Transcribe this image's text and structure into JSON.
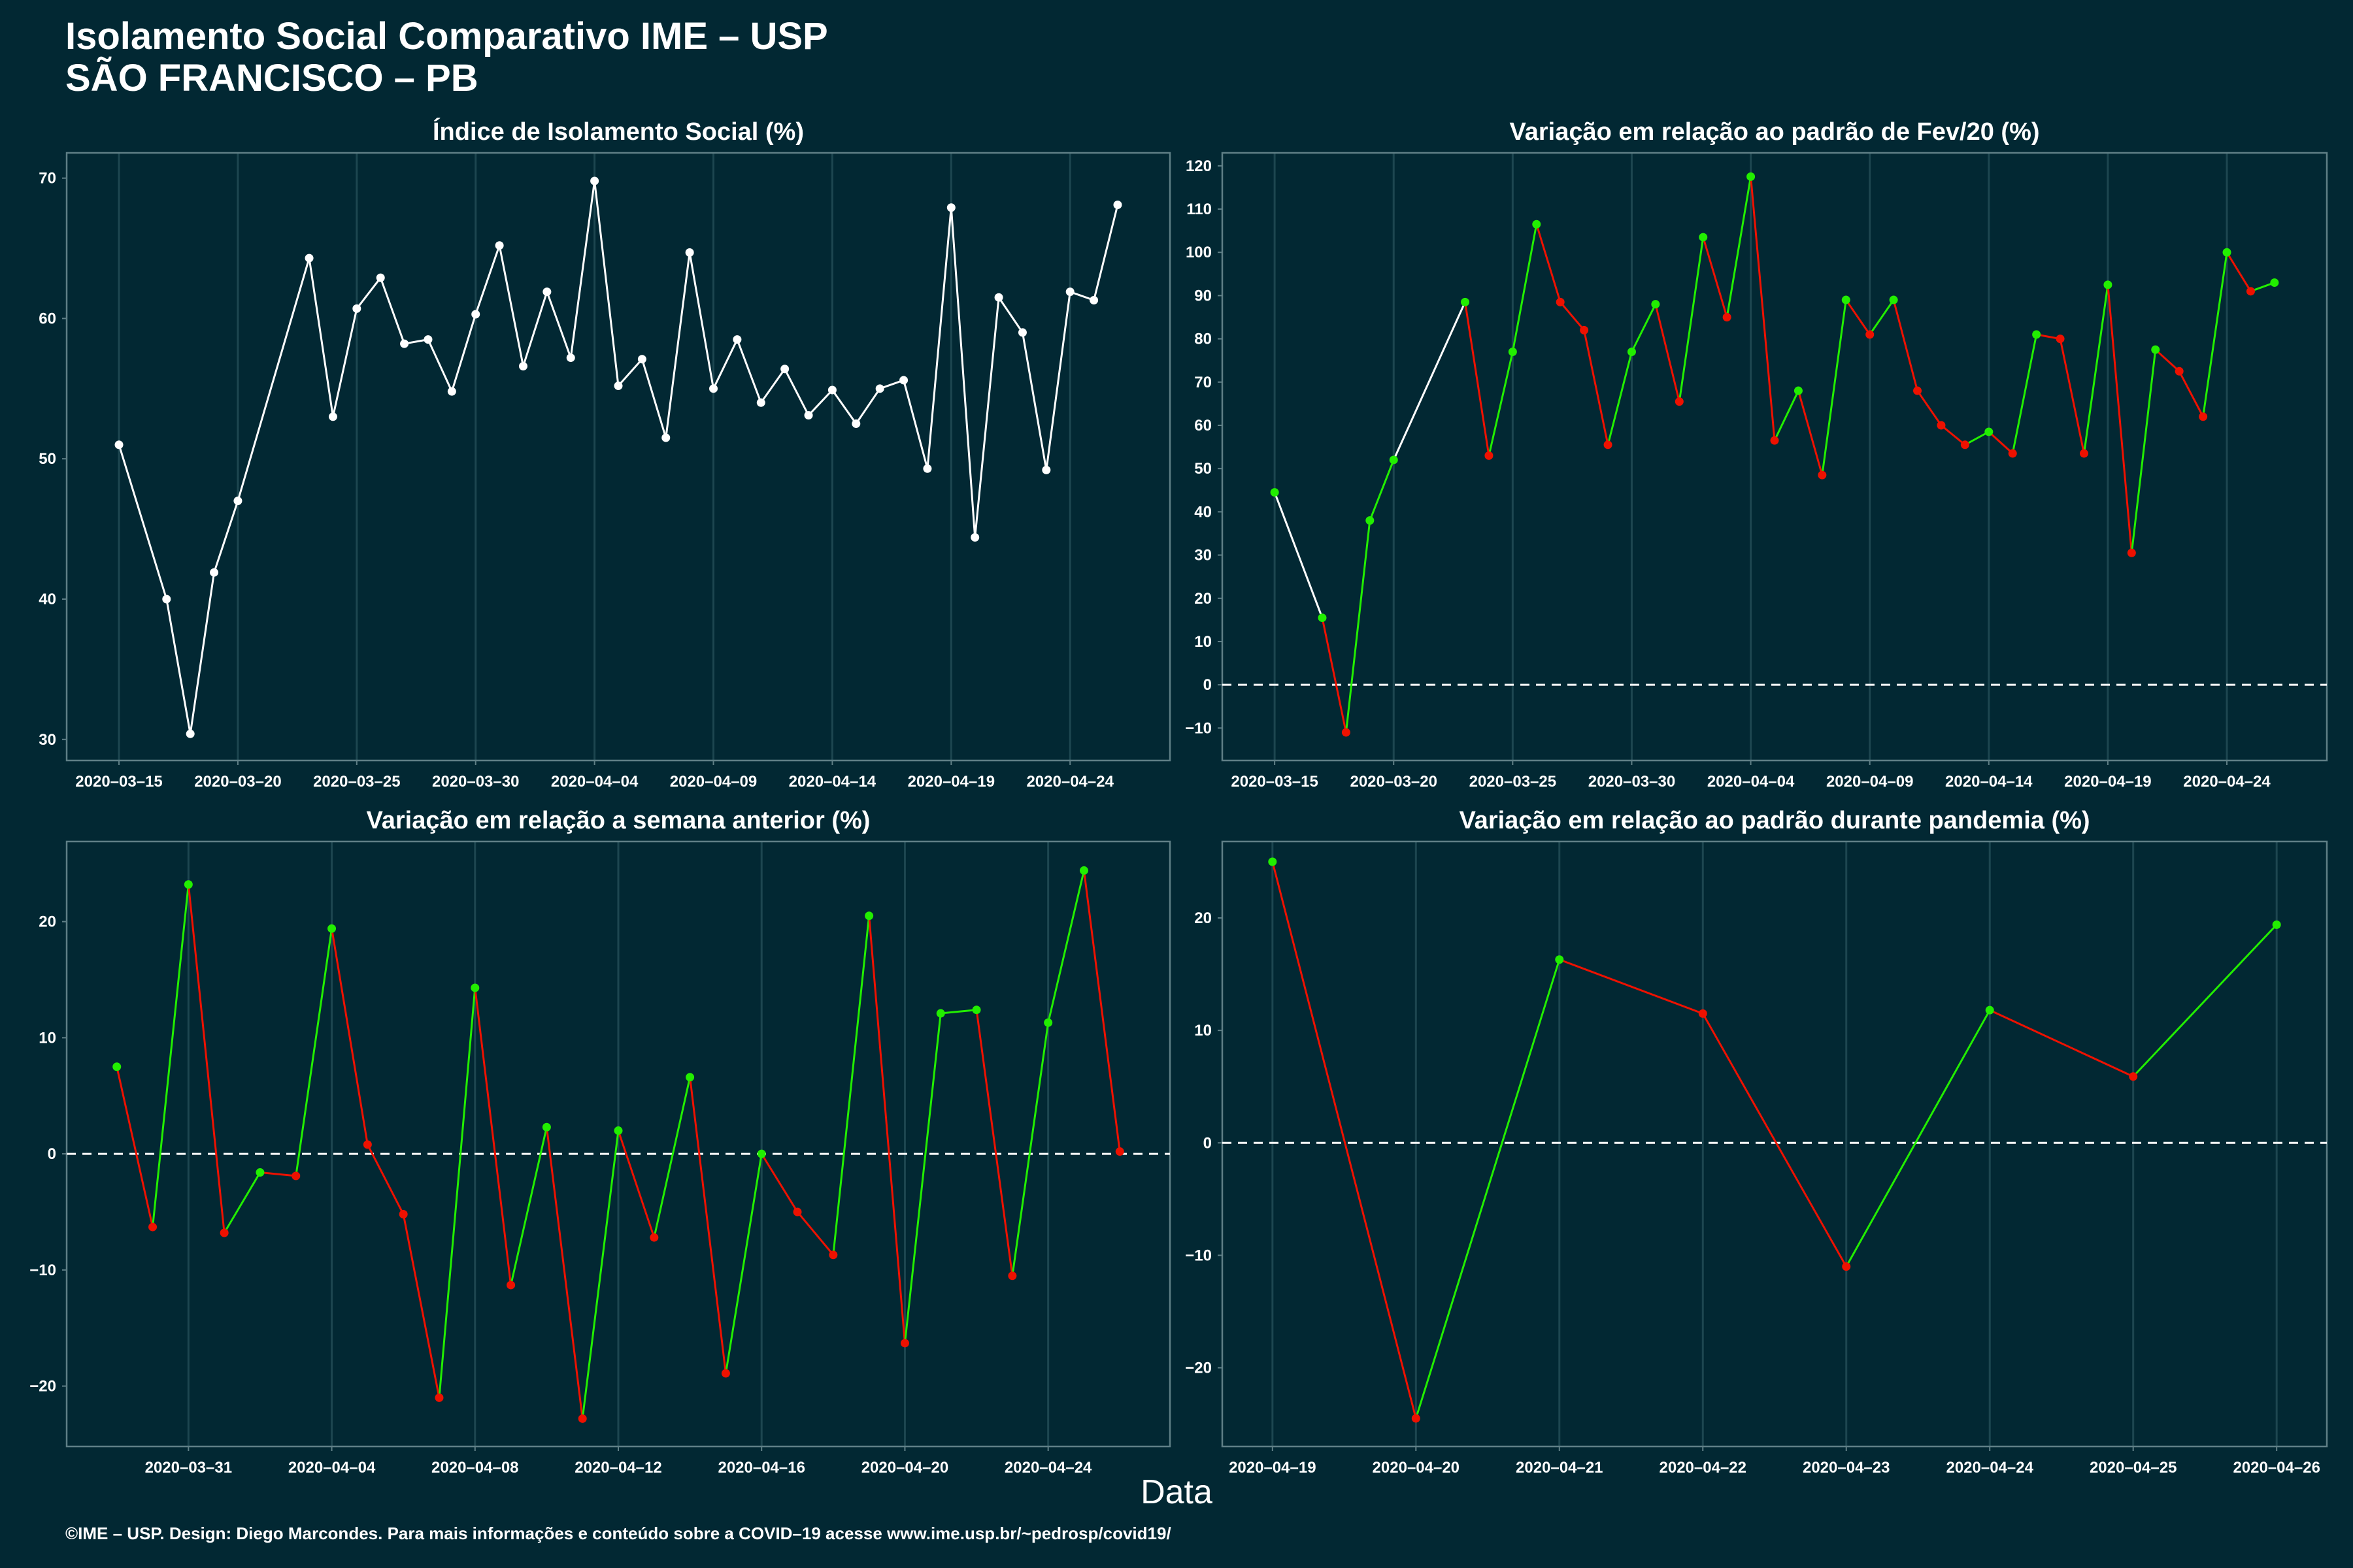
{
  "header": {
    "title_line1": "Isolamento Social Comparativo IME – USP",
    "title_line2": "SÃO FRANCISCO – PB"
  },
  "x_axis_title": "Data",
  "footer": "©IME – USP. Design: Diego Marcondes. Para mais informações e conteúdo sobre a COVID–19 acesse www.ime.usp.br/~pedrosp/covid19/",
  "colors": {
    "background": "#022833",
    "panel_border": "#5f7f86",
    "grid": "#1d4650",
    "white_line": "#ffffff",
    "up": "#22ee00",
    "down": "#ee1100",
    "zero_line": "#ffffff"
  },
  "chart_data": [
    {
      "type": "line",
      "title": "Índice de Isolamento Social (%)",
      "ylim": [
        28.5,
        71.8
      ],
      "yticks": [
        30,
        40,
        50,
        60,
        70
      ],
      "xlim": [
        -2.2,
        44.2
      ],
      "xticks": [
        {
          "x": 0,
          "label": "2020–03–15"
        },
        {
          "x": 5,
          "label": "2020–03–20"
        },
        {
          "x": 10,
          "label": "2020–03–25"
        },
        {
          "x": 15,
          "label": "2020–03–30"
        },
        {
          "x": 20,
          "label": "2020–04–04"
        },
        {
          "x": 25,
          "label": "2020–04–09"
        },
        {
          "x": 30,
          "label": "2020–04–14"
        },
        {
          "x": 35,
          "label": "2020–04–19"
        },
        {
          "x": 40,
          "label": "2020–04–24"
        }
      ],
      "coloring": "white",
      "zero_line": false,
      "points": [
        [
          0,
          51.0
        ],
        [
          2,
          40.0
        ],
        [
          3,
          30.4
        ],
        [
          4,
          41.9
        ],
        [
          5,
          47.0
        ],
        [
          8,
          64.3
        ],
        [
          9,
          53.0
        ],
        [
          10,
          60.7
        ],
        [
          11,
          62.9
        ],
        [
          12,
          58.2
        ],
        [
          13,
          58.5
        ],
        [
          14,
          54.8
        ],
        [
          15,
          60.3
        ],
        [
          16,
          65.2
        ],
        [
          17,
          56.6
        ],
        [
          18,
          61.9
        ],
        [
          19,
          57.2
        ],
        [
          20,
          69.8
        ],
        [
          21,
          55.2
        ],
        [
          22,
          57.1
        ],
        [
          23,
          51.5
        ],
        [
          24,
          64.7
        ],
        [
          25,
          55.0
        ],
        [
          26,
          58.5
        ],
        [
          27,
          54.0
        ],
        [
          28,
          56.4
        ],
        [
          29,
          53.1
        ],
        [
          30,
          54.9
        ],
        [
          31,
          52.5
        ],
        [
          32,
          55.0
        ],
        [
          33,
          55.6
        ],
        [
          34,
          49.3
        ],
        [
          35,
          67.9
        ],
        [
          36,
          44.4
        ],
        [
          37,
          61.5
        ],
        [
          38,
          59.0
        ],
        [
          39,
          49.2
        ],
        [
          40,
          61.9
        ],
        [
          41,
          61.3
        ],
        [
          42,
          68.1
        ]
      ]
    },
    {
      "type": "line",
      "title": "Variação em relação ao padrão de Fev/20 (%)",
      "ylim": [
        -17.5,
        123
      ],
      "yticks": [
        -10,
        0,
        10,
        20,
        30,
        40,
        50,
        60,
        70,
        80,
        90,
        100,
        110,
        120
      ],
      "xlim": [
        -2.2,
        44.2
      ],
      "xticks": [
        {
          "x": 0,
          "label": "2020–03–15"
        },
        {
          "x": 5,
          "label": "2020–03–20"
        },
        {
          "x": 10,
          "label": "2020–03–25"
        },
        {
          "x": 15,
          "label": "2020–03–30"
        },
        {
          "x": 20,
          "label": "2020–04–04"
        },
        {
          "x": 25,
          "label": "2020–04–09"
        },
        {
          "x": 30,
          "label": "2020–04–14"
        },
        {
          "x": 35,
          "label": "2020–04–19"
        },
        {
          "x": 40,
          "label": "2020–04–24"
        }
      ],
      "coloring": "updown",
      "zero_line": true,
      "points": [
        [
          0,
          44.5
        ],
        [
          2,
          15.5
        ],
        [
          3,
          -11.0
        ],
        [
          4,
          38.0
        ],
        [
          5,
          52.0
        ],
        [
          8,
          88.5
        ],
        [
          9,
          53.0
        ],
        [
          10,
          77.0
        ],
        [
          11,
          106.5
        ],
        [
          12,
          88.5
        ],
        [
          13,
          82.0
        ],
        [
          14,
          55.5
        ],
        [
          15,
          77.0
        ],
        [
          16,
          88.0
        ],
        [
          17,
          65.5
        ],
        [
          18,
          103.5
        ],
        [
          19,
          85.0
        ],
        [
          20,
          117.5
        ],
        [
          21,
          56.5
        ],
        [
          22,
          68.0
        ],
        [
          23,
          48.5
        ],
        [
          24,
          89.0
        ],
        [
          25,
          81.0
        ],
        [
          26,
          89.0
        ],
        [
          27,
          68.0
        ],
        [
          28,
          60.0
        ],
        [
          29,
          55.5
        ],
        [
          30,
          58.5
        ],
        [
          31,
          53.5
        ],
        [
          32,
          81.0
        ],
        [
          33,
          80.0
        ],
        [
          34,
          53.5
        ],
        [
          35,
          92.5
        ],
        [
          36,
          30.5
        ],
        [
          37,
          77.5
        ],
        [
          38,
          72.5
        ],
        [
          39,
          62.0
        ],
        [
          40,
          100.0
        ],
        [
          41,
          91.0
        ],
        [
          42,
          93.0
        ]
      ]
    },
    {
      "type": "line",
      "title": "Variação em relação a semana anterior (%)",
      "ylim": [
        -25.2,
        26.9
      ],
      "yticks": [
        -20,
        -10,
        0,
        10,
        20
      ],
      "xlim": [
        -1.4,
        29.4
      ],
      "xticks": [
        {
          "x": 2,
          "label": "2020–03–31"
        },
        {
          "x": 6,
          "label": "2020–04–04"
        },
        {
          "x": 10,
          "label": "2020–04–08"
        },
        {
          "x": 14,
          "label": "2020–04–12"
        },
        {
          "x": 18,
          "label": "2020–04–16"
        },
        {
          "x": 22,
          "label": "2020–04–20"
        },
        {
          "x": 26,
          "label": "2020–04–24"
        }
      ],
      "coloring": "updown",
      "zero_line": true,
      "points": [
        [
          0,
          7.5
        ],
        [
          1,
          -6.3
        ],
        [
          2,
          23.2
        ],
        [
          3,
          -6.8
        ],
        [
          4,
          -1.6
        ],
        [
          5,
          -1.9
        ],
        [
          6,
          19.4
        ],
        [
          7,
          0.8
        ],
        [
          8,
          -5.2
        ],
        [
          9,
          -21.0
        ],
        [
          10,
          14.3
        ],
        [
          11,
          -11.3
        ],
        [
          12,
          2.3
        ],
        [
          13,
          -22.8
        ],
        [
          14,
          2.0
        ],
        [
          15,
          -7.2
        ],
        [
          16,
          6.6
        ],
        [
          17,
          -18.9
        ],
        [
          18,
          0.0
        ],
        [
          19,
          -5.0
        ],
        [
          20,
          -8.7
        ],
        [
          21,
          20.5
        ],
        [
          22,
          -16.3
        ],
        [
          23,
          12.1
        ],
        [
          24,
          12.4
        ],
        [
          25,
          -10.5
        ],
        [
          26,
          11.3
        ],
        [
          27,
          24.4
        ],
        [
          28,
          0.2
        ]
      ]
    },
    {
      "type": "line",
      "title": "Variação em relação ao padrão durante pandemia (%)",
      "ylim": [
        -27,
        26.8
      ],
      "yticks": [
        -20,
        -10,
        0,
        10,
        20
      ],
      "xlim": [
        -0.35,
        7.35
      ],
      "xticks": [
        {
          "x": 0,
          "label": "2020–04–19"
        },
        {
          "x": 1,
          "label": "2020–04–20"
        },
        {
          "x": 2,
          "label": "2020–04–21"
        },
        {
          "x": 3,
          "label": "2020–04–22"
        },
        {
          "x": 4,
          "label": "2020–04–23"
        },
        {
          "x": 5,
          "label": "2020–04–24"
        },
        {
          "x": 6,
          "label": "2020–04–25"
        },
        {
          "x": 7,
          "label": "2020–04–26"
        }
      ],
      "coloring": "updown",
      "zero_line": true,
      "points": [
        [
          0,
          25.0
        ],
        [
          1,
          -24.5
        ],
        [
          2,
          16.3
        ],
        [
          3,
          11.5
        ],
        [
          4,
          -11.0
        ],
        [
          5,
          11.8
        ],
        [
          6,
          5.9
        ],
        [
          7,
          19.4
        ]
      ]
    }
  ]
}
